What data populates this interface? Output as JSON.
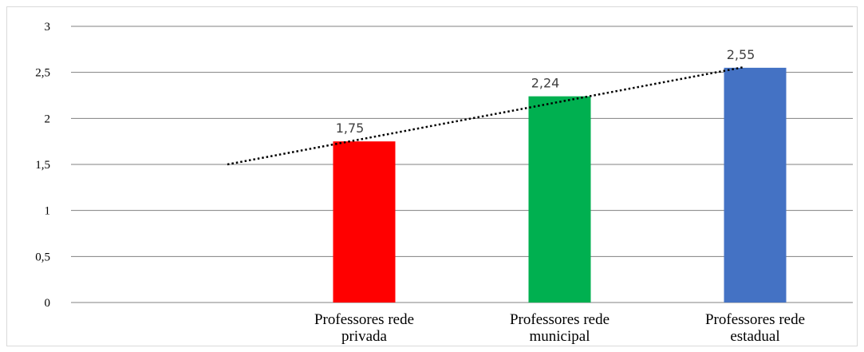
{
  "chart_data": {
    "type": "bar",
    "title": "",
    "xlabel": "",
    "ylabel": "",
    "categories": [
      [
        "Professores rede",
        "privada"
      ],
      [
        "Professores rede",
        "municipal"
      ],
      [
        "Professores rede",
        "estadual"
      ]
    ],
    "values": [
      1.75,
      2.24,
      2.55
    ],
    "data_labels": [
      "1,75",
      "2,24",
      "2,55"
    ],
    "bar_colors": [
      "#ff0000",
      "#00b050",
      "#4472c4"
    ],
    "ylim": [
      0,
      3
    ],
    "yticks": [
      0,
      0.5,
      1,
      1.5,
      2,
      2.5,
      3
    ],
    "ytick_labels": [
      "0",
      "0,5",
      "1",
      "1,5",
      "2",
      "2,5",
      "3"
    ],
    "grid": true,
    "legend": "none",
    "trendline": {
      "type": "linear",
      "style": "dotted",
      "color": "#000000"
    },
    "empty_leading_category": true
  }
}
